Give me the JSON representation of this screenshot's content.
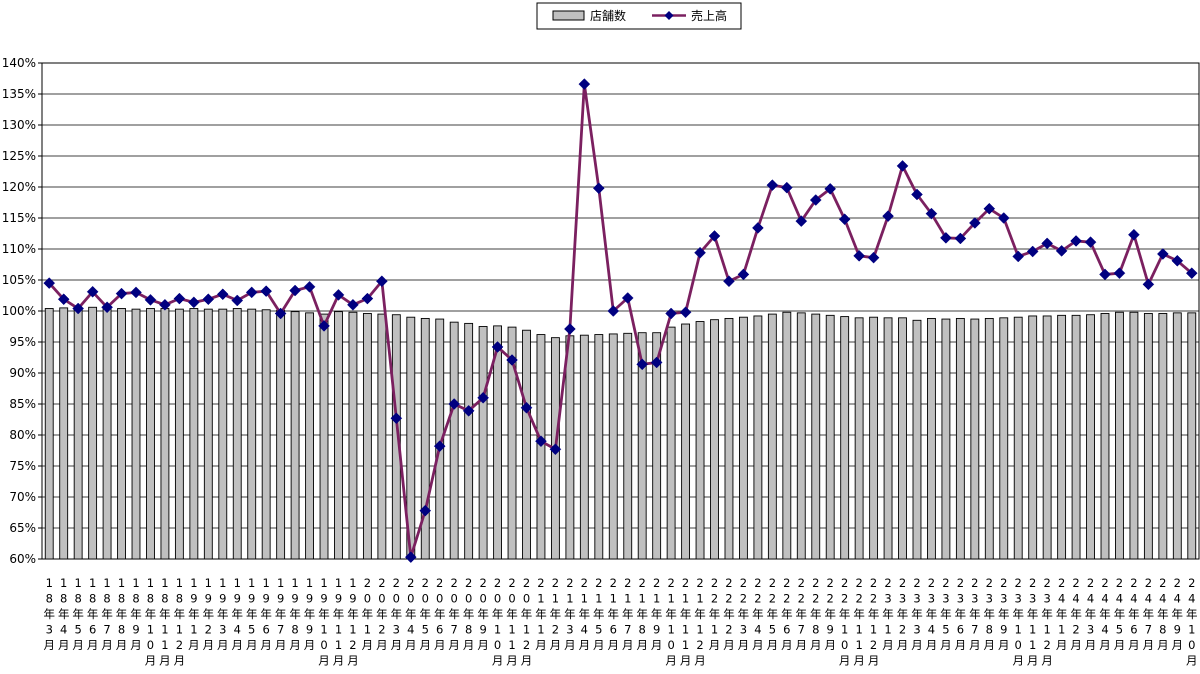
{
  "chart_data": {
    "type": "bar+line",
    "legend": {
      "position": "top-center",
      "entries": [
        {
          "name": "店舗数",
          "kind": "bar",
          "color": "#c0c0c0"
        },
        {
          "name": "売上高",
          "kind": "line",
          "color": "#7b2060",
          "marker_color": "#000080"
        }
      ]
    },
    "ylim": [
      60,
      140
    ],
    "yticks": [
      60,
      65,
      70,
      75,
      80,
      85,
      90,
      95,
      100,
      105,
      110,
      115,
      120,
      125,
      130,
      135,
      140
    ],
    "y_unit": "%",
    "grid": "horizontal",
    "x_labels": [
      "18年3月",
      "18年4月",
      "18年5月",
      "18年6月",
      "18年7月",
      "18年8月",
      "18年9月",
      "18年10月",
      "18年11月",
      "18年12月",
      "19年1月",
      "19年2月",
      "19年3月",
      "19年4月",
      "19年5月",
      "19年6月",
      "19年7月",
      "19年8月",
      "19年9月",
      "19年10月",
      "19年11月",
      "19年12月",
      "20年1月",
      "20年2月",
      "20年3月",
      "20年4月",
      "20年5月",
      "20年6月",
      "20年7月",
      "20年8月",
      "20年9月",
      "20年10月",
      "20年11月",
      "20年12月",
      "21年1月",
      "21年2月",
      "21年3月",
      "21年4月",
      "21年5月",
      "21年6月",
      "21年7月",
      "21年8月",
      "21年9月",
      "21年10月",
      "21年11月",
      "21年12月",
      "22年1月",
      "22年2月",
      "22年3月",
      "22年4月",
      "22年5月",
      "22年6月",
      "22年7月",
      "22年8月",
      "22年9月",
      "22年10月",
      "22年11月",
      "22年12月",
      "23年1月",
      "23年2月",
      "23年3月",
      "23年4月",
      "23年5月",
      "23年6月",
      "23年7月",
      "23年8月",
      "23年9月",
      "23年10月",
      "23年11月",
      "23年12月",
      "24年1月",
      "24年2月",
      "24年3月",
      "24年4月",
      "24年5月",
      "24年6月",
      "24年7月",
      "24年8月",
      "24年9月",
      "24年10月"
    ],
    "series": [
      {
        "name": "店舗数",
        "type": "bar",
        "values": [
          100.4,
          100.5,
          100.3,
          100.6,
          100.5,
          100.4,
          100.3,
          100.4,
          100.4,
          100.3,
          100.4,
          100.3,
          100.3,
          100.4,
          100.3,
          100.2,
          100.1,
          99.9,
          99.7,
          99.5,
          99.9,
          99.8,
          99.6,
          99.5,
          99.4,
          99.0,
          98.8,
          98.7,
          98.2,
          98.0,
          97.5,
          97.6,
          97.4,
          96.9,
          96.2,
          95.7,
          96.0,
          96.1,
          96.2,
          96.3,
          96.4,
          96.5,
          96.5,
          97.4,
          97.9,
          98.3,
          98.6,
          98.8,
          99.0,
          99.2,
          99.5,
          99.8,
          99.7,
          99.5,
          99.3,
          99.1,
          98.9,
          99.0,
          98.9,
          98.9,
          98.5,
          98.8,
          98.7,
          98.8,
          98.7,
          98.8,
          98.9,
          99.0,
          99.2,
          99.2,
          99.3,
          99.3,
          99.4,
          99.6,
          99.8,
          99.8,
          99.6,
          99.6,
          99.7,
          99.7
        ]
      },
      {
        "name": "売上高",
        "type": "line",
        "values": [
          104.5,
          101.9,
          100.4,
          103.1,
          100.6,
          102.8,
          103.0,
          101.8,
          101.0,
          102.0,
          101.4,
          101.9,
          102.7,
          101.7,
          103.0,
          103.2,
          99.6,
          103.3,
          103.9,
          97.6,
          102.6,
          101.0,
          102.0,
          104.8,
          82.7,
          60.3,
          67.8,
          78.2,
          85.0,
          83.9,
          86.0,
          94.2,
          92.1,
          84.4,
          79.0,
          77.7,
          97.1,
          136.6,
          119.8,
          100.0,
          102.1,
          91.4,
          91.7,
          99.6,
          99.8,
          109.4,
          112.1,
          104.8,
          105.9,
          113.4,
          120.3,
          119.9,
          114.5,
          117.9,
          119.7,
          114.8,
          108.9,
          108.6,
          115.3,
          123.4,
          118.8,
          115.7,
          111.8,
          111.7,
          114.2,
          116.5,
          115.0,
          108.8,
          109.6,
          110.9,
          109.7,
          111.3,
          111.1,
          105.9,
          106.1,
          112.3,
          104.3,
          109.2,
          108.1,
          106.1
        ]
      }
    ]
  }
}
